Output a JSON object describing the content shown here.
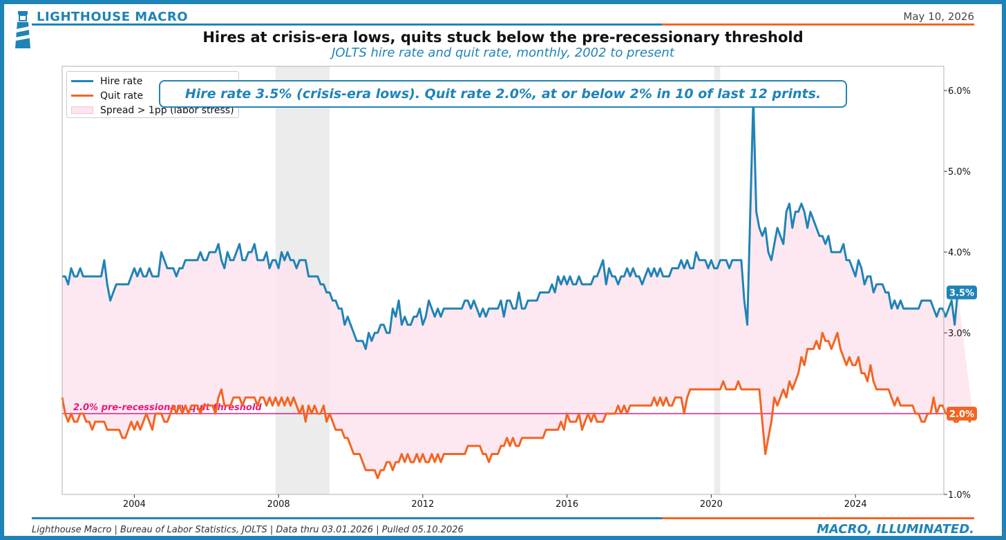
{
  "header": {
    "brand": "LIGHTHOUSE MACRO",
    "date": "May 10, 2026"
  },
  "title": "Hires at crisis-era lows, quits stuck below the pre-recessionary threshold",
  "subtitle": "JOLTS hire rate and quit rate, monthly, 2002 to present",
  "annotation": "Hire rate 3.5% (crisis-era lows). Quit rate 2.0%, at or below 2% in 10 of last 12 prints.",
  "footer": {
    "source": "Lighthouse Macro | Bureau of Labor Statistics, JOLTS | Data thru 03.01.2026 | Pulled 05.10.2026",
    "tagline": "MACRO, ILLUMINATED."
  },
  "colors": {
    "hire": "#1f83b6",
    "quit": "#f26522",
    "spread_fill": "#fde4ee",
    "threshold": "#e8187f",
    "recession": "#ececec",
    "brand_blue": "#1f83b6",
    "brand_orange": "#f26522"
  },
  "chart_data": {
    "type": "line",
    "x_start": "2002-01",
    "frequency": "monthly",
    "x_ticks": [
      "2004",
      "2008",
      "2012",
      "2016",
      "2020",
      "2024"
    ],
    "y_ticks": [
      "1.0%",
      "3.0%",
      "4.0%",
      "5.0%",
      "6.0%"
    ],
    "ylim": [
      1.0,
      6.3
    ],
    "y_axis_side": "right",
    "legend": {
      "placement": "top-left",
      "entries": [
        "Hire rate",
        "Quit rate",
        "Spread > 1pp (labor stress)"
      ]
    },
    "threshold": {
      "value": 2.0,
      "label": "2.0% pre-recessionary quit threshold"
    },
    "recessions": [
      {
        "start": "2007-12",
        "end": "2009-06"
      },
      {
        "start": "2020-02",
        "end": "2020-04"
      }
    ],
    "end_labels": {
      "hire": "3.5%",
      "quit": "2.0%"
    },
    "series": [
      {
        "name": "Hire rate",
        "values": [
          3.7,
          3.7,
          3.6,
          3.8,
          3.7,
          3.7,
          3.8,
          3.7,
          3.7,
          3.7,
          3.7,
          3.7,
          3.7,
          3.7,
          3.9,
          3.6,
          3.4,
          3.5,
          3.6,
          3.6,
          3.6,
          3.6,
          3.6,
          3.7,
          3.8,
          3.7,
          3.8,
          3.7,
          3.7,
          3.8,
          3.7,
          3.7,
          3.7,
          4.0,
          3.9,
          3.8,
          3.8,
          3.8,
          3.7,
          3.8,
          3.8,
          3.9,
          3.9,
          3.9,
          3.9,
          3.9,
          4.0,
          3.9,
          3.9,
          4.0,
          4.0,
          4.0,
          4.1,
          3.9,
          3.8,
          4.0,
          3.9,
          3.9,
          4.0,
          4.1,
          3.9,
          3.9,
          4.0,
          4.0,
          4.1,
          3.9,
          3.9,
          3.9,
          4.0,
          3.8,
          3.9,
          3.9,
          3.8,
          4.0,
          3.9,
          4.0,
          3.9,
          3.9,
          3.8,
          3.9,
          3.9,
          3.9,
          3.7,
          3.7,
          3.7,
          3.7,
          3.6,
          3.6,
          3.5,
          3.5,
          3.4,
          3.4,
          3.3,
          3.3,
          3.1,
          3.2,
          3.1,
          3.0,
          2.9,
          2.9,
          2.9,
          2.8,
          3.0,
          2.9,
          3.0,
          3.0,
          3.1,
          3.1,
          3.0,
          3.0,
          3.3,
          3.2,
          3.4,
          3.1,
          3.2,
          3.1,
          3.1,
          3.2,
          3.2,
          3.3,
          3.1,
          3.2,
          3.4,
          3.3,
          3.2,
          3.3,
          3.2,
          3.3,
          3.3,
          3.3,
          3.3,
          3.3,
          3.3,
          3.3,
          3.4,
          3.4,
          3.3,
          3.4,
          3.3,
          3.2,
          3.3,
          3.2,
          3.3,
          3.3,
          3.3,
          3.3,
          3.4,
          3.2,
          3.4,
          3.4,
          3.3,
          3.3,
          3.5,
          3.3,
          3.3,
          3.4,
          3.4,
          3.4,
          3.4,
          3.5,
          3.5,
          3.5,
          3.5,
          3.6,
          3.5,
          3.7,
          3.6,
          3.7,
          3.6,
          3.7,
          3.6,
          3.6,
          3.7,
          3.6,
          3.6,
          3.6,
          3.6,
          3.7,
          3.7,
          3.8,
          3.9,
          3.6,
          3.8,
          3.7,
          3.7,
          3.6,
          3.7,
          3.7,
          3.8,
          3.7,
          3.8,
          3.7,
          3.7,
          3.6,
          3.7,
          3.8,
          3.7,
          3.8,
          3.7,
          3.8,
          3.7,
          3.7,
          3.7,
          3.8,
          3.8,
          3.8,
          3.9,
          3.8,
          3.9,
          3.8,
          3.8,
          4.0,
          3.9,
          3.9,
          3.9,
          3.8,
          3.9,
          3.8,
          3.8,
          3.9,
          3.9,
          3.9,
          3.8,
          3.9,
          3.9,
          3.9,
          3.9,
          3.4,
          3.1,
          4.5,
          5.9,
          4.5,
          4.3,
          4.2,
          4.3,
          4.0,
          3.9,
          4.1,
          4.3,
          4.2,
          4.1,
          4.5,
          4.6,
          4.3,
          4.5,
          4.5,
          4.6,
          4.5,
          4.3,
          4.5,
          4.4,
          4.3,
          4.2,
          4.2,
          4.1,
          4.2,
          4.0,
          4.0,
          4.0,
          4.0,
          4.1,
          3.9,
          3.9,
          3.8,
          3.7,
          3.9,
          3.8,
          3.6,
          3.7,
          3.7,
          3.5,
          3.6,
          3.6,
          3.6,
          3.5,
          3.5,
          3.3,
          3.4,
          3.3,
          3.4,
          3.3,
          3.3,
          3.3,
          3.3,
          3.3,
          3.3,
          3.4,
          3.4,
          3.4,
          3.4,
          3.3,
          3.2,
          3.3,
          3.3,
          3.2,
          3.3,
          3.4,
          3.1,
          3.5
        ]
      },
      {
        "name": "Quit rate",
        "values": [
          2.2,
          2.0,
          1.9,
          2.0,
          1.9,
          1.9,
          2.0,
          2.0,
          1.9,
          1.9,
          1.8,
          1.9,
          1.9,
          1.9,
          1.9,
          1.8,
          1.8,
          1.8,
          1.8,
          1.8,
          1.7,
          1.7,
          1.8,
          1.9,
          1.8,
          1.9,
          1.8,
          1.9,
          2.0,
          1.9,
          1.8,
          2.0,
          2.0,
          2.0,
          1.9,
          1.9,
          2.0,
          2.1,
          2.0,
          2.1,
          2.0,
          2.1,
          2.0,
          2.1,
          2.1,
          2.1,
          2.0,
          2.1,
          2.1,
          2.1,
          2.1,
          2.0,
          2.2,
          2.3,
          2.1,
          2.1,
          2.1,
          2.2,
          2.2,
          2.2,
          2.1,
          2.2,
          2.2,
          2.2,
          2.2,
          2.1,
          2.2,
          2.2,
          2.1,
          2.2,
          2.1,
          2.2,
          2.1,
          2.2,
          2.1,
          2.2,
          2.1,
          2.2,
          2.1,
          2.0,
          2.1,
          1.9,
          2.1,
          2.0,
          2.1,
          2.0,
          2.0,
          2.1,
          1.9,
          2.0,
          1.9,
          1.8,
          1.8,
          1.8,
          1.7,
          1.7,
          1.6,
          1.5,
          1.5,
          1.5,
          1.4,
          1.3,
          1.3,
          1.3,
          1.3,
          1.2,
          1.3,
          1.3,
          1.4,
          1.4,
          1.3,
          1.4,
          1.4,
          1.5,
          1.4,
          1.5,
          1.4,
          1.4,
          1.5,
          1.4,
          1.5,
          1.4,
          1.4,
          1.5,
          1.4,
          1.5,
          1.4,
          1.5,
          1.5,
          1.5,
          1.5,
          1.5,
          1.5,
          1.5,
          1.5,
          1.6,
          1.6,
          1.6,
          1.6,
          1.6,
          1.5,
          1.5,
          1.4,
          1.5,
          1.5,
          1.5,
          1.6,
          1.6,
          1.7,
          1.6,
          1.7,
          1.6,
          1.6,
          1.7,
          1.7,
          1.7,
          1.7,
          1.7,
          1.7,
          1.7,
          1.7,
          1.8,
          1.8,
          1.8,
          1.8,
          1.8,
          1.9,
          1.8,
          2.0,
          1.9,
          1.9,
          1.9,
          2.0,
          1.8,
          1.9,
          2.0,
          1.9,
          2.0,
          1.9,
          1.9,
          1.9,
          2.0,
          2.0,
          2.0,
          2.0,
          2.1,
          2.0,
          2.1,
          2.0,
          2.1,
          2.1,
          2.1,
          2.1,
          2.1,
          2.1,
          2.1,
          2.1,
          2.2,
          2.1,
          2.2,
          2.1,
          2.2,
          2.1,
          2.1,
          2.2,
          2.2,
          2.2,
          2.0,
          2.2,
          2.3,
          2.3,
          2.3,
          2.3,
          2.3,
          2.3,
          2.3,
          2.3,
          2.3,
          2.3,
          2.3,
          2.4,
          2.3,
          2.3,
          2.3,
          2.3,
          2.4,
          2.3,
          2.3,
          2.3,
          2.3,
          2.3,
          2.3,
          2.3,
          1.9,
          1.5,
          1.7,
          1.9,
          2.2,
          2.1,
          2.2,
          2.3,
          2.2,
          2.4,
          2.3,
          2.4,
          2.5,
          2.7,
          2.6,
          2.8,
          2.8,
          2.8,
          2.9,
          2.8,
          3.0,
          2.9,
          2.9,
          2.8,
          2.9,
          3.0,
          2.8,
          2.7,
          2.6,
          2.7,
          2.6,
          2.6,
          2.7,
          2.5,
          2.5,
          2.4,
          2.6,
          2.4,
          2.3,
          2.3,
          2.3,
          2.3,
          2.3,
          2.2,
          2.1,
          2.2,
          2.1,
          2.1,
          2.1,
          2.1,
          2.1,
          2.0,
          2.0,
          1.9,
          1.9,
          2.0,
          2.0,
          2.2,
          2.0,
          2.1,
          2.1,
          2.0,
          2.0,
          2.0,
          1.9,
          1.9,
          2.0,
          2.0,
          2.0,
          1.9,
          2.0
        ]
      }
    ]
  }
}
